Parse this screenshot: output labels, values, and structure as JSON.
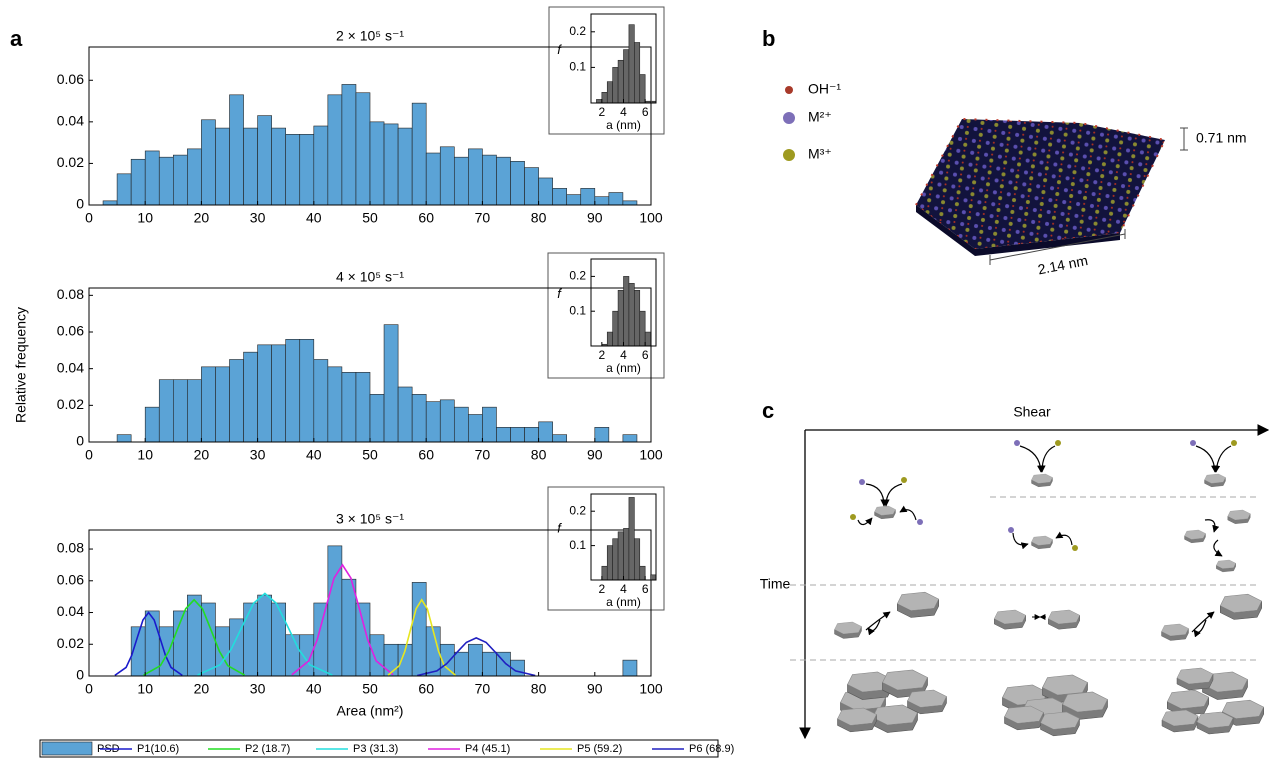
{
  "panel_labels": [
    "a",
    "b",
    "c"
  ],
  "chart_data": [
    {
      "type": "histogram",
      "title": "2 × 10⁵ s⁻¹",
      "color": "#5ba3d6",
      "bins": [
        0,
        2.5,
        5,
        7.5,
        10,
        12.5,
        15,
        17.5,
        20,
        22.5,
        25,
        27.5,
        30,
        32.5,
        35,
        37.5,
        40,
        42.5,
        45,
        47.5,
        50,
        52.5,
        55,
        57.5,
        60,
        62.5,
        65,
        67.5,
        70,
        72.5,
        75,
        77.5,
        80,
        82.5,
        85,
        87.5,
        90,
        92.5,
        95,
        97.5,
        100
      ],
      "values": [
        0,
        0.002,
        0.015,
        0.022,
        0.026,
        0.023,
        0.024,
        0.027,
        0.041,
        0.037,
        0.053,
        0.037,
        0.043,
        0.037,
        0.034,
        0.034,
        0.038,
        0.053,
        0.058,
        0.054,
        0.04,
        0.039,
        0.037,
        0.049,
        0.025,
        0.028,
        0.023,
        0.027,
        0.024,
        0.023,
        0.021,
        0.018,
        0.013,
        0.008,
        0.005,
        0.008,
        0.004,
        0.006,
        0.002,
        0
      ],
      "xlim": [
        0,
        100
      ],
      "ylim": [
        0,
        0.076
      ],
      "xticks": [
        0,
        10,
        20,
        30,
        40,
        50,
        60,
        70,
        80,
        90,
        100
      ],
      "yticks": [
        0,
        0.02,
        0.04,
        0.06
      ]
    },
    {
      "type": "histogram",
      "title": "4 × 10⁵ s⁻¹",
      "ylabel": "Relative frequency",
      "color": "#5ba3d6",
      "bins": [
        0,
        2.5,
        5,
        7.5,
        10,
        12.5,
        15,
        17.5,
        20,
        22.5,
        25,
        27.5,
        30,
        32.5,
        35,
        37.5,
        40,
        42.5,
        45,
        47.5,
        50,
        52.5,
        55,
        57.5,
        60,
        62.5,
        65,
        67.5,
        70,
        72.5,
        75,
        77.5,
        80,
        82.5,
        85,
        87.5,
        90,
        92.5,
        95,
        97.5,
        100
      ],
      "values": [
        0,
        0,
        0.004,
        0,
        0.019,
        0.034,
        0.034,
        0.034,
        0.041,
        0.041,
        0.045,
        0.049,
        0.053,
        0.053,
        0.056,
        0.056,
        0.045,
        0.041,
        0.038,
        0.038,
        0.026,
        0.064,
        0.03,
        0.026,
        0.022,
        0.023,
        0.019,
        0.015,
        0.019,
        0.008,
        0.008,
        0.008,
        0.011,
        0.004,
        0,
        0,
        0.008,
        0,
        0.004,
        0
      ],
      "xlim": [
        0,
        100
      ],
      "ylim": [
        0,
        0.084
      ],
      "xticks": [
        0,
        10,
        20,
        30,
        40,
        50,
        60,
        70,
        80,
        90,
        100
      ],
      "yticks": [
        0,
        0.02,
        0.04,
        0.06,
        0.08
      ]
    },
    {
      "type": "histogram",
      "title": "3 × 10⁵ s⁻¹",
      "xlabel": "Area (nm²)",
      "name": "PSD",
      "color": "#5ba3d6",
      "bins": [
        0,
        2.5,
        5,
        7.5,
        10,
        12.5,
        15,
        17.5,
        20,
        22.5,
        25,
        27.5,
        30,
        32.5,
        35,
        37.5,
        40,
        42.5,
        45,
        47.5,
        50,
        52.5,
        55,
        57.5,
        60,
        62.5,
        65,
        67.5,
        70,
        72.5,
        75,
        77.5,
        80,
        82.5,
        85,
        87.5,
        90,
        92.5,
        95,
        97.5,
        100
      ],
      "values": [
        0,
        0,
        0,
        0.031,
        0.041,
        0.031,
        0.041,
        0.051,
        0.046,
        0.031,
        0.036,
        0.046,
        0.051,
        0.046,
        0.026,
        0.026,
        0.046,
        0.082,
        0.061,
        0.046,
        0.026,
        0.02,
        0.02,
        0.059,
        0.031,
        0.02,
        0.015,
        0.02,
        0.015,
        0.015,
        0.01,
        0,
        0,
        0,
        0,
        0,
        0,
        0,
        0.01,
        0
      ],
      "xlim": [
        0,
        100
      ],
      "ylim": [
        0,
        0.092
      ],
      "xticks": [
        0,
        10,
        20,
        30,
        40,
        50,
        60,
        70,
        80,
        90,
        100
      ],
      "yticks": [
        0,
        0.02,
        0.04,
        0.06,
        0.08
      ],
      "series": [
        {
          "name": "P1(10.6)",
          "color": "#1a1acc",
          "x": [
            4.6,
            6.6,
            7.6,
            8.6,
            9.6,
            10.6,
            11.6,
            12.6,
            13.6,
            14.6,
            16.6
          ],
          "values": [
            0.0004,
            0.0054,
            0.013,
            0.0243,
            0.0353,
            0.04,
            0.0353,
            0.0243,
            0.013,
            0.0054,
            0.0004
          ]
        },
        {
          "name": "P2 (18.7)",
          "color": "#22dd22",
          "x": [
            9.7,
            12.7,
            14.2,
            15.7,
            17.2,
            18.7,
            20.2,
            21.7,
            23.2,
            24.7,
            27.7
          ],
          "values": [
            0.0005,
            0.0065,
            0.0156,
            0.0291,
            0.0423,
            0.048,
            0.0423,
            0.0291,
            0.0156,
            0.0065,
            0.0005
          ]
        },
        {
          "name": "P3 (31.3)",
          "color": "#22dddd",
          "x": [
            19.3,
            23.3,
            25.3,
            27.3,
            29.3,
            31.3,
            33.3,
            35.3,
            37.3,
            39.3,
            43.3
          ],
          "values": [
            0.0006,
            0.007,
            0.0169,
            0.0316,
            0.0459,
            0.052,
            0.0459,
            0.0316,
            0.0169,
            0.007,
            0.0006
          ]
        },
        {
          "name": "P4 (45.1)",
          "color": "#e020e0",
          "x": [
            36.1,
            39.1,
            40.6,
            42.1,
            43.6,
            45.1,
            46.6,
            48.1,
            49.6,
            51.1,
            54.1
          ],
          "values": [
            0.0008,
            0.0095,
            0.0228,
            0.0425,
            0.0617,
            0.07,
            0.0617,
            0.0425,
            0.0228,
            0.0095,
            0.0008
          ]
        },
        {
          "name": "P5 (59.2)",
          "color": "#e6e620",
          "x": [
            53.2,
            55.2,
            56.2,
            57.2,
            58.2,
            59.2,
            60.2,
            61.2,
            62.2,
            63.2,
            65.2
          ],
          "values": [
            0.0005,
            0.0065,
            0.0156,
            0.0291,
            0.0423,
            0.048,
            0.0423,
            0.0291,
            0.0156,
            0.0065,
            0.0005
          ]
        },
        {
          "name": "P6 (68.9)",
          "color": "#2020c0",
          "x": [
            58.4,
            61.9,
            63.65,
            65.4,
            67.15,
            68.9,
            70.65,
            72.4,
            74.15,
            75.9,
            79.4
          ],
          "values": [
            0.0003,
            0.0032,
            0.0078,
            0.0146,
            0.0212,
            0.024,
            0.0212,
            0.0146,
            0.0078,
            0.0032,
            0.0003
          ]
        }
      ]
    },
    {
      "type": "histogram",
      "xlabel": "a (nm)",
      "ylabel": "f",
      "color": "#666666",
      "bins": [
        1.5,
        2,
        2.5,
        3,
        3.5,
        4,
        4.5,
        5,
        5.5,
        6,
        6.5,
        7
      ],
      "values": [
        0.01,
        0.03,
        0.06,
        0.1,
        0.12,
        0.15,
        0.22,
        0.17,
        0.08,
        0.005,
        0.005
      ],
      "xlim": [
        1,
        7
      ],
      "ylim": [
        0,
        0.25
      ],
      "xticks": [
        2,
        4,
        6
      ],
      "yticks": [
        0.1,
        0.2
      ]
    },
    {
      "type": "histogram",
      "xlabel": "a (nm)",
      "ylabel": "f",
      "color": "#666666",
      "bins": [
        2,
        2.5,
        3,
        3.5,
        4,
        4.5,
        5,
        5.5,
        6,
        6.5
      ],
      "values": [
        0.005,
        0.04,
        0.1,
        0.16,
        0.2,
        0.18,
        0.16,
        0.1,
        0.04
      ],
      "xlim": [
        1,
        7
      ],
      "ylim": [
        0,
        0.25
      ],
      "xticks": [
        2,
        4,
        6
      ],
      "yticks": [
        0.1,
        0.2
      ]
    },
    {
      "type": "histogram",
      "xlabel": "a (nm)",
      "ylabel": "f",
      "color": "#666666",
      "bins": [
        2,
        2.5,
        3,
        3.5,
        4,
        4.5,
        5,
        5.5,
        6,
        6.5,
        7
      ],
      "values": [
        0.04,
        0.1,
        0.12,
        0.14,
        0.15,
        0.24,
        0.12,
        0.04,
        0,
        0.015
      ],
      "xlim": [
        1,
        7
      ],
      "ylim": [
        0,
        0.25
      ],
      "xticks": [
        2,
        4,
        6
      ],
      "yticks": [
        0.1,
        0.2
      ]
    }
  ],
  "panel_b": {
    "legend": [
      "OH⁻¹",
      "M²⁺",
      "M³⁺"
    ],
    "thickness": "0.71 nm",
    "width": "2.14 nm"
  },
  "panel_c": {
    "x_axis": "Shear",
    "y_axis": "Time"
  }
}
